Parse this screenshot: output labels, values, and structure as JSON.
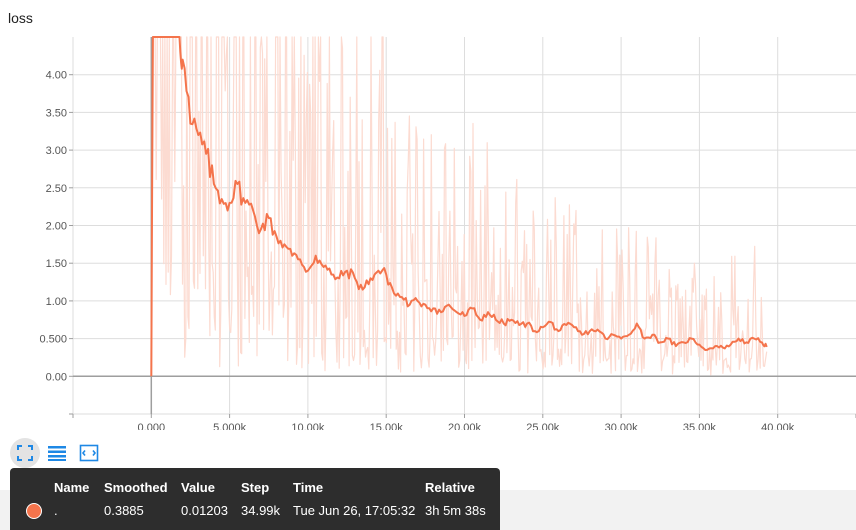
{
  "colors": {
    "smoothed": "#f4744c",
    "raw": "#fcdbd1",
    "grid": "#dddddd",
    "axis": "#9e9e9e",
    "accent": "#1e88e5"
  },
  "icons": {
    "fit": "fit-domain-icon",
    "log": "log-scale-icon",
    "zoom": "zoom-selection-icon"
  },
  "chart_data": {
    "type": "line",
    "title": "loss",
    "xlabel": "",
    "ylabel": "",
    "xlim": [
      -5000,
      45000
    ],
    "ylim": [
      -0.5,
      4.5
    ],
    "grid": true,
    "x_ticks": [
      "0.000",
      "5.000k",
      "10.00k",
      "15.00k",
      "20.00k",
      "25.00k",
      "30.00k",
      "35.00k",
      "40.00k"
    ],
    "y_ticks": [
      "0.00",
      "0.500",
      "1.00",
      "1.50",
      "2.00",
      "2.50",
      "3.00",
      "3.50",
      "4.00"
    ],
    "x_tick_values": [
      0,
      5000,
      10000,
      15000,
      20000,
      25000,
      30000,
      35000,
      40000
    ],
    "y_tick_values": [
      0,
      0.5,
      1,
      1.5,
      2,
      2.5,
      3,
      3.5,
      4
    ],
    "series": [
      {
        "values_x": [
          0,
          50,
          100,
          500,
          1000,
          1500,
          1800,
          2000,
          2500,
          3000,
          3500,
          4000,
          4500,
          5000,
          5500,
          6000,
          6500,
          7000,
          7500,
          8000,
          8500,
          9000,
          9500,
          10000,
          10500,
          11000,
          11500,
          12000,
          12500,
          13000,
          13500,
          14000,
          14500,
          15000,
          15500,
          16000,
          16500,
          17000,
          17500,
          18000,
          18500,
          19000,
          19500,
          20000,
          20500,
          21000,
          21500,
          22000,
          22500,
          23000,
          23500,
          24000,
          24500,
          25000,
          25500,
          26000,
          26500,
          27000,
          27500,
          28000,
          28500,
          29000,
          29500,
          30000,
          30500,
          31000,
          31500,
          32000,
          32500,
          33000,
          33500,
          34000,
          34500,
          35000,
          35500,
          36000,
          36500,
          37000,
          37500,
          38000,
          38500,
          39000,
          39300
        ],
        "values_y": [
          0,
          2.45,
          4.5,
          4.5,
          4.5,
          4.5,
          4.5,
          4.2,
          3.35,
          3.2,
          2.95,
          2.55,
          2.35,
          2.3,
          2.55,
          2.3,
          2.2,
          1.95,
          2.1,
          1.85,
          1.75,
          1.6,
          1.55,
          1.4,
          1.6,
          1.45,
          1.35,
          1.3,
          1.4,
          1.3,
          1.15,
          1.3,
          1.4,
          1.35,
          1.1,
          1.05,
          0.95,
          1.0,
          0.95,
          0.9,
          0.85,
          0.95,
          0.85,
          0.8,
          0.9,
          0.75,
          0.85,
          0.75,
          0.7,
          0.75,
          0.68,
          0.7,
          0.6,
          0.65,
          0.72,
          0.6,
          0.68,
          0.65,
          0.55,
          0.6,
          0.62,
          0.5,
          0.55,
          0.5,
          0.55,
          0.7,
          0.5,
          0.55,
          0.45,
          0.5,
          0.4,
          0.45,
          0.5,
          0.42,
          0.35,
          0.4,
          0.38,
          0.42,
          0.5,
          0.45,
          0.5,
          0.45,
          0.39
        ]
      }
    ]
  },
  "tooltip": {
    "headers": {
      "name": "Name",
      "smoothed": "Smoothed",
      "value": "Value",
      "step": "Step",
      "time": "Time",
      "relative": "Relative"
    },
    "row": {
      "name": ".",
      "smoothed": "0.3885",
      "value": "0.01203",
      "step": "34.99k",
      "time": "Tue Jun 26, 17:05:32",
      "relative": "3h 5m 38s"
    }
  }
}
